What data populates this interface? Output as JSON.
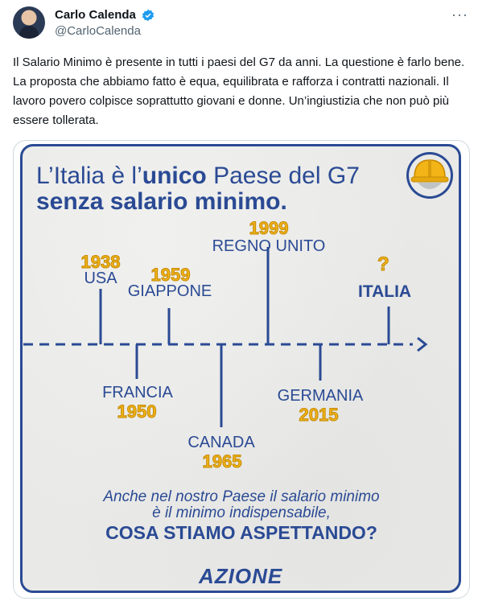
{
  "author": {
    "name": "Carlo Calenda",
    "handle": "@CarloCalenda"
  },
  "tweet": {
    "text": "Il Salario Minimo è presente in tutti i paesi del G7 da anni. La questione è farlo bene. La proposta che abbiamo fatto è equa, equilibrata e rafforza i contratti nazionali. Il lavoro povero colpisce soprattutto giovani e donne. Un’ingiustizia che non può più essere tollerata."
  },
  "poster": {
    "headline_word1": "L’Italia è l’",
    "headline_bold": "unico",
    "headline_word2": " Paese del G7",
    "headline_line2": "senza salario minimo.",
    "timeline": [
      {
        "country": "USA",
        "year": "1938"
      },
      {
        "country": "GIAPPONE",
        "year": "1959"
      },
      {
        "country": "REGNO UNITO",
        "year": "1999"
      },
      {
        "country": "ITALIA",
        "year": "?"
      },
      {
        "country": "FRANCIA",
        "year": "1950"
      },
      {
        "country": "CANADA",
        "year": "1965"
      },
      {
        "country": "GERMANIA",
        "year": "2015"
      }
    ],
    "closing_line1": "Anche nel nostro Paese il salario minimo",
    "closing_line2": "è il minimo indispensabile,",
    "closing_question": "COSA STIAMO ASPETTANDO?",
    "logo_text": "AZIONE"
  },
  "colors": {
    "brand_blue": "#2a4a94",
    "year_yellow": "#f0b21a",
    "verified_blue": "#1d9bf0"
  }
}
